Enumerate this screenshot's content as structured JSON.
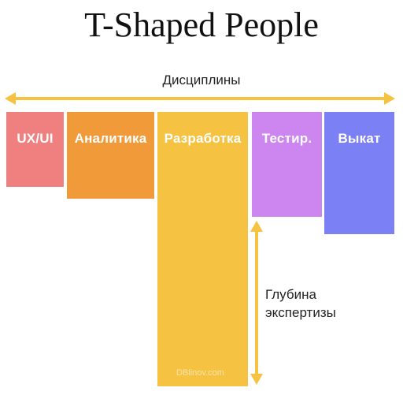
{
  "title": "T-Shaped People",
  "axis_label": "Дисциплины",
  "blocks": [
    {
      "label": "UX/UI",
      "color": "#F08080"
    },
    {
      "label": "Аналитика",
      "color": "#F09A3A"
    },
    {
      "label": "Разработка",
      "color": "#F5C242"
    },
    {
      "label": "Тестир.",
      "color": "#CD86F0"
    },
    {
      "label": "Выкат",
      "color": "#7C80F5"
    }
  ],
  "depth_label": {
    "line1": "Глубина",
    "line2": "экспертизы"
  },
  "watermark": "DBlinov.com",
  "arrow_color": "#F5C242"
}
